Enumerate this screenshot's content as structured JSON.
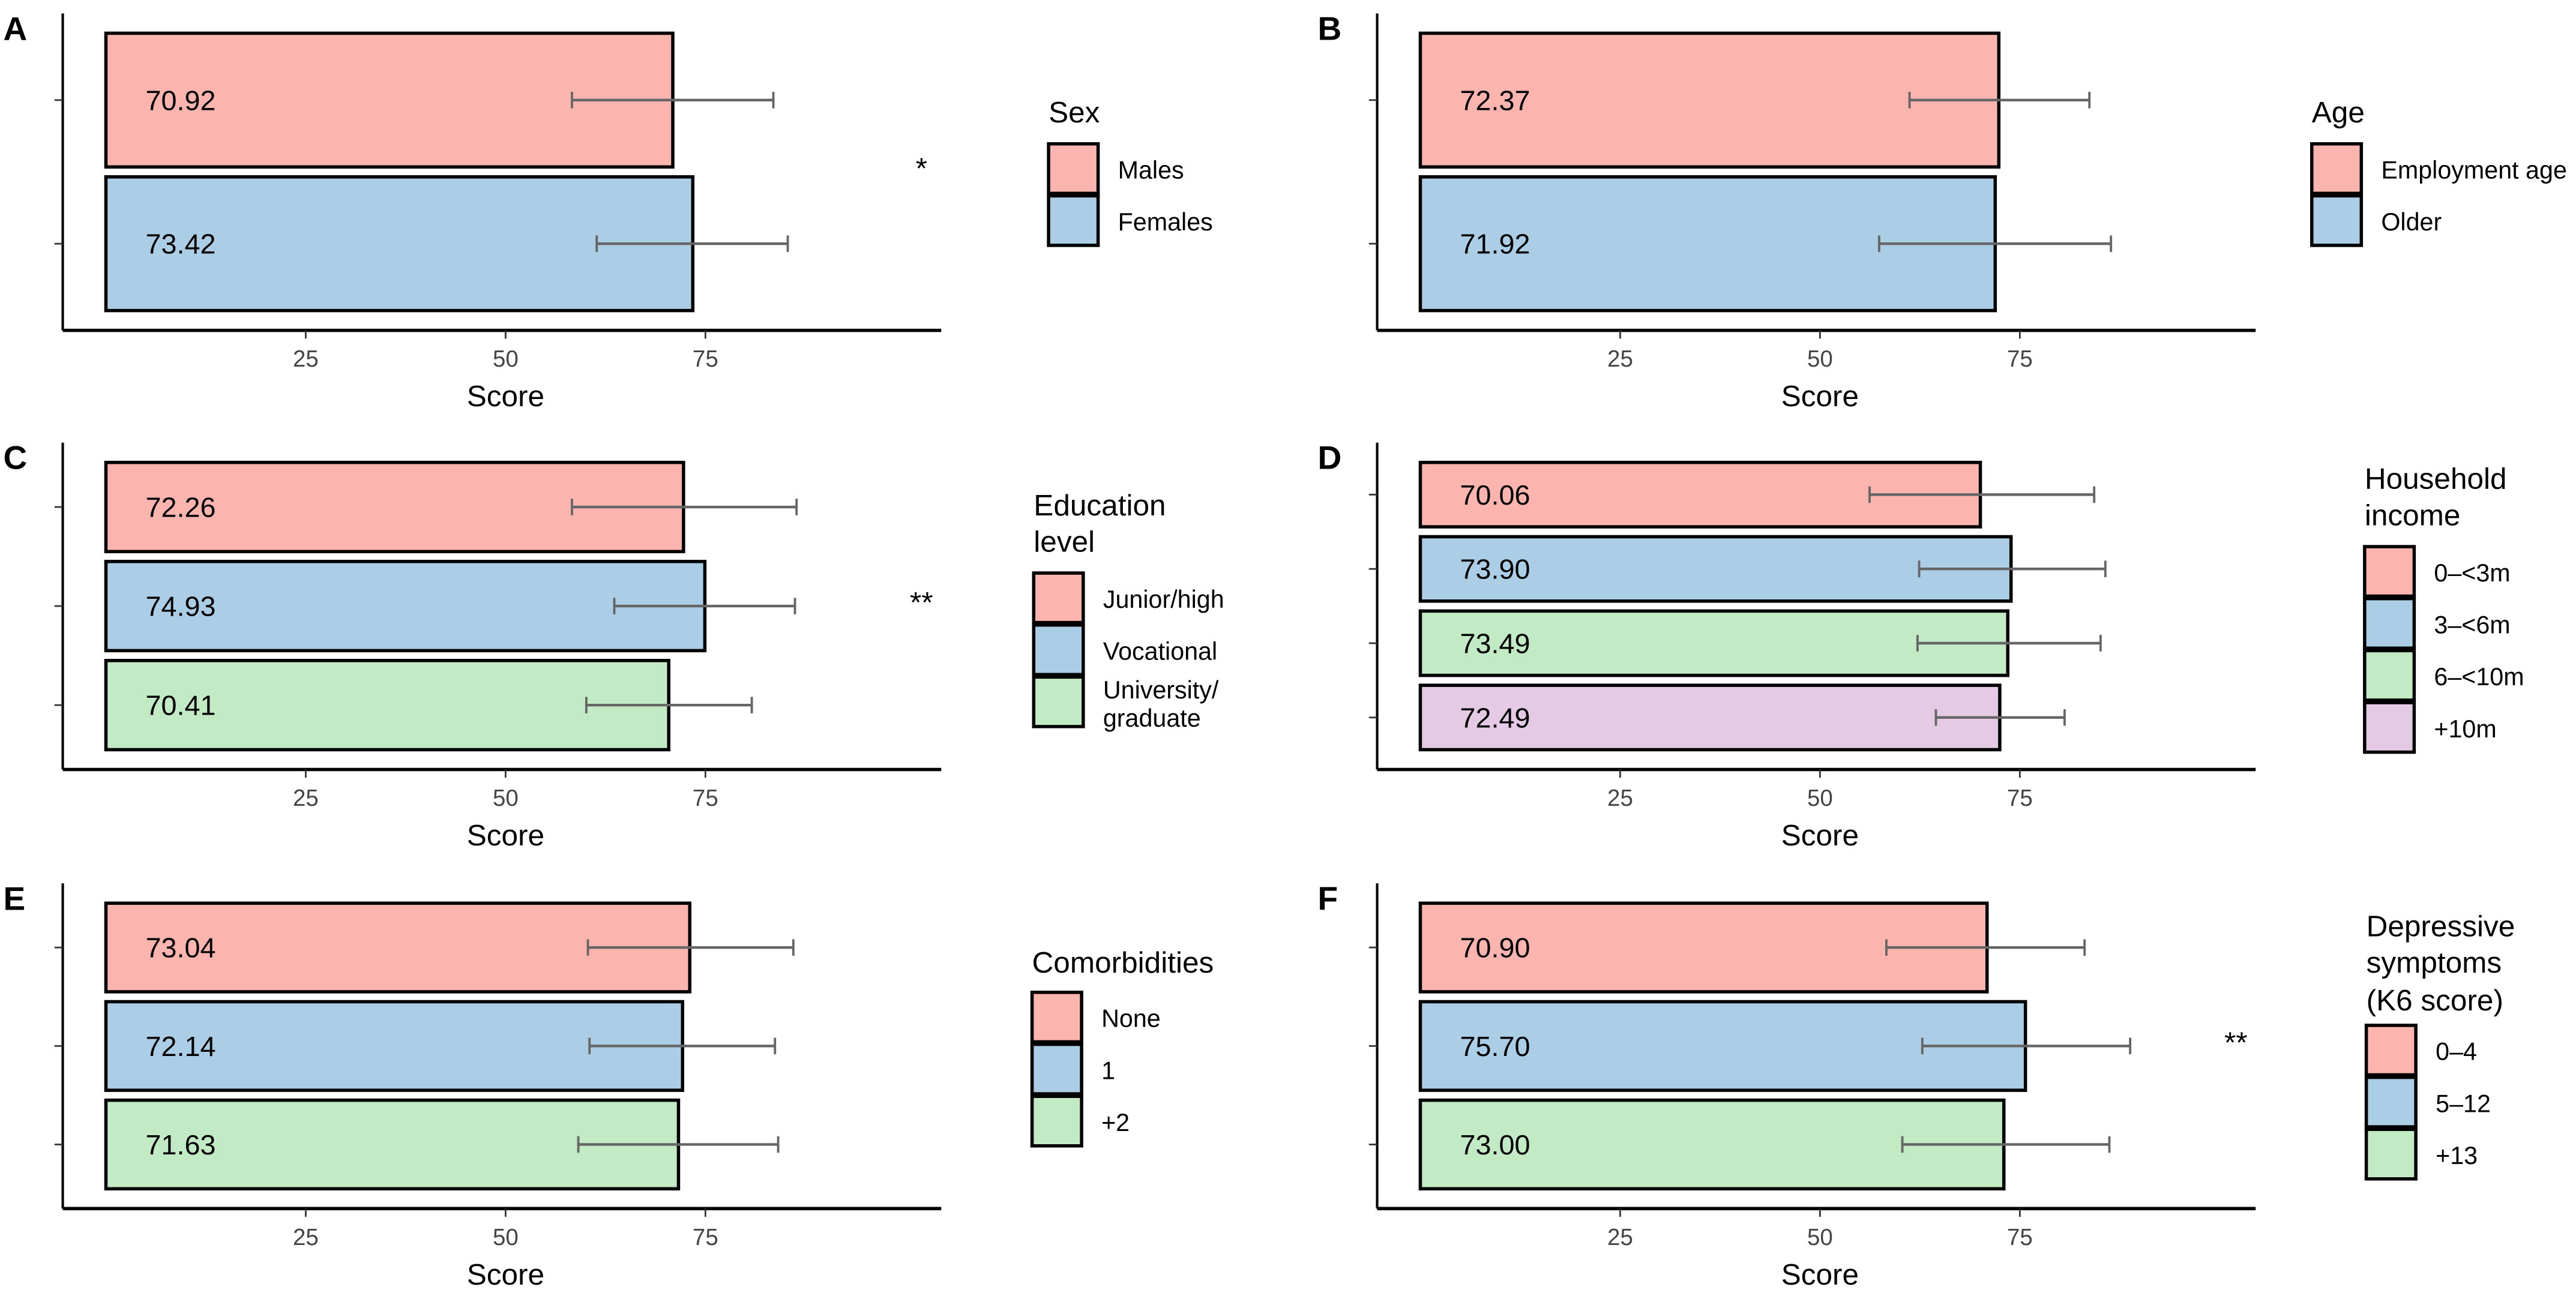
{
  "colors": {
    "pink": "#FBB4AE",
    "blue": "#ABCDE5",
    "green": "#C1EAC5",
    "purple": "#E4CAE5",
    "errorbar": "#666666",
    "axis": "#000000"
  },
  "chart_data": [
    {
      "panel": "A",
      "type": "bar",
      "orientation": "horizontal",
      "xlabel": "Score",
      "xticks": [
        25,
        50,
        75
      ],
      "xlim": [
        -5.4,
        104.5
      ],
      "legend_title": [
        "Sex"
      ],
      "significance": "*",
      "categories": [
        "Males",
        "Females"
      ],
      "values": [
        70.92,
        73.42
      ],
      "value_labels": [
        "70.92",
        "73.42"
      ],
      "error_low": [
        58.3,
        61.4
      ],
      "error_high": [
        83.5,
        85.3
      ],
      "fill": [
        "pink",
        "blue"
      ]
    },
    {
      "panel": "B",
      "type": "bar",
      "orientation": "horizontal",
      "xlabel": "Score",
      "xticks": [
        25,
        50,
        75
      ],
      "xlim": [
        -5.4,
        104.5
      ],
      "legend_title": [
        "Age"
      ],
      "significance": "",
      "categories": [
        "Employment age",
        "Older"
      ],
      "values": [
        72.37,
        71.92
      ],
      "value_labels": [
        "72.37",
        "71.92"
      ],
      "error_low": [
        61.2,
        57.4
      ],
      "error_high": [
        83.7,
        86.4
      ],
      "fill": [
        "pink",
        "blue"
      ]
    },
    {
      "panel": "C",
      "type": "bar",
      "orientation": "horizontal",
      "xlabel": "Score",
      "xticks": [
        25,
        50,
        75
      ],
      "xlim": [
        -5.4,
        104.5
      ],
      "legend_title": [
        "Education",
        "level"
      ],
      "significance": "**",
      "categories": [
        "Junior/high",
        "Vocational",
        "University/ graduate"
      ],
      "values": [
        72.26,
        74.93,
        70.41
      ],
      "value_labels": [
        "72.26",
        "74.93",
        "70.41"
      ],
      "error_low": [
        58.3,
        63.6,
        60.1
      ],
      "error_high": [
        86.4,
        86.2,
        80.8
      ],
      "fill": [
        "pink",
        "blue",
        "green"
      ]
    },
    {
      "panel": "D",
      "type": "bar",
      "orientation": "horizontal",
      "xlabel": "Score",
      "xticks": [
        25,
        50,
        75
      ],
      "xlim": [
        -5.4,
        104.5
      ],
      "legend_title": [
        "Household",
        "income"
      ],
      "significance": "",
      "categories": [
        "0–<3m",
        "3–<6m",
        "6–<10m",
        "+10m"
      ],
      "values": [
        70.06,
        73.9,
        73.49,
        72.49
      ],
      "value_labels": [
        "70.06",
        "73.90",
        "73.49",
        "72.49"
      ],
      "error_low": [
        56.2,
        62.4,
        62.2,
        64.5
      ],
      "error_high": [
        84.3,
        85.7,
        85.1,
        80.6
      ],
      "fill": [
        "pink",
        "blue",
        "green",
        "purple"
      ]
    },
    {
      "panel": "E",
      "type": "bar",
      "orientation": "horizontal",
      "xlabel": "Score",
      "xticks": [
        25,
        50,
        75
      ],
      "xlim": [
        -5.4,
        104.5
      ],
      "legend_title": [
        "Comorbidities"
      ],
      "significance": "",
      "categories": [
        "None",
        "1",
        "+2"
      ],
      "values": [
        73.04,
        72.14,
        71.63
      ],
      "value_labels": [
        "73.04",
        "72.14",
        "71.63"
      ],
      "error_low": [
        60.3,
        60.5,
        59.1
      ],
      "error_high": [
        86.0,
        83.7,
        84.1
      ],
      "fill": [
        "pink",
        "blue",
        "green"
      ]
    },
    {
      "panel": "F",
      "type": "bar",
      "orientation": "horizontal",
      "xlabel": "Score",
      "xticks": [
        25,
        50,
        75
      ],
      "xlim": [
        -5.4,
        104.5
      ],
      "legend_title": [
        "Depressive",
        "symptoms",
        "(K6 score)"
      ],
      "significance": "**",
      "categories": [
        "0–4",
        "5–12",
        "+13"
      ],
      "values": [
        70.9,
        75.7,
        73.0
      ],
      "value_labels": [
        "70.90",
        "75.70",
        "73.00"
      ],
      "error_low": [
        58.3,
        62.8,
        60.3
      ],
      "error_high": [
        83.1,
        88.8,
        86.2
      ],
      "fill": [
        "pink",
        "blue",
        "green"
      ]
    }
  ]
}
